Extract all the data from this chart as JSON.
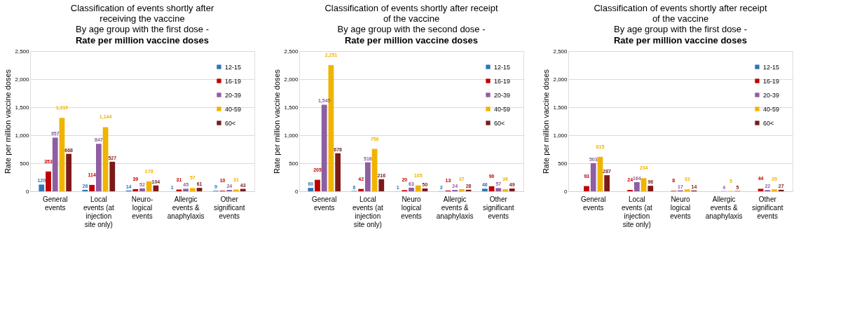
{
  "chart_data": [
    {
      "type": "bar",
      "title": "Classification of events shortly after\nreceiving the vaccine\nBy age group with the first dose -",
      "subtitle": "Rate per million vaccine doses",
      "ylabel": "Rate per million vaccine doses",
      "categories": [
        "General events",
        "Local events (at injection site only)",
        "Neuro- logical events",
        "Allergic events & anaphylaxis",
        "Other significant events"
      ],
      "series": [
        {
          "name": "12-15",
          "color": "#2e75b6",
          "values": [
            120,
            26,
            14,
            1,
            9
          ]
        },
        {
          "name": "16-19",
          "color": "#c00000",
          "values": [
            353,
            114,
            39,
            31,
            10
          ]
        },
        {
          "name": "20-39",
          "color": "#8e5ea2",
          "values": [
            957,
            847,
            52,
            45,
            24
          ]
        },
        {
          "name": "40-59",
          "color": "#f0b400",
          "values": [
            1310,
            1144,
            178,
            57,
            31
          ],
          "value_labels": [
            "1,310",
            "1,144",
            "178",
            "57",
            "31"
          ]
        },
        {
          "name": "60<",
          "color": "#7b1a1a",
          "values": [
            668,
            527,
            104,
            61,
            43
          ]
        }
      ],
      "ylim": [
        0,
        2500
      ],
      "yticks": [
        0,
        500,
        {
          "value": 1000,
          "label": "1,000"
        },
        {
          "value": 1500,
          "label": "1,500"
        },
        {
          "value": 2000,
          "label": "2,000"
        },
        {
          "value": 2500,
          "label": "2,500"
        }
      ],
      "grid": "y",
      "legend": "top right",
      "data_labels": true
    },
    {
      "type": "bar",
      "title": "Classification of events shortly after receipt\nof the vaccine\nBy age group with the second dose -",
      "subtitle": "Rate per million vaccine doses",
      "ylabel": "Rate per million vaccine doses",
      "categories": [
        "General events",
        "Local events (at injection site only)",
        "Neuro logical events",
        "Allergic events & anaphylaxis",
        "Other significant events"
      ],
      "series": [
        {
          "name": "12-15",
          "color": "#2e75b6",
          "values": [
            60,
            6,
            1,
            3,
            46
          ]
        },
        {
          "name": "16-19",
          "color": "#c00000",
          "values": [
            205,
            42,
            20,
            13,
            90
          ]
        },
        {
          "name": "20-39",
          "color": "#8e5ea2",
          "values": [
            1545,
            516,
            63,
            24,
            57
          ],
          "value_labels": [
            "1,545",
            "516",
            "63",
            "24",
            "57"
          ]
        },
        {
          "name": "40-59",
          "color": "#f0b400",
          "values": [
            2251,
            756,
            105,
            37,
            36
          ],
          "value_labels": [
            "2,251",
            "756",
            "105",
            "37",
            "36"
          ]
        },
        {
          "name": "60<",
          "color": "#7b1a1a",
          "values": [
            678,
            216,
            50,
            28,
            49
          ]
        }
      ],
      "ylim": [
        0,
        2500
      ],
      "yticks": [
        0,
        500,
        {
          "value": 1000,
          "label": "1,000"
        },
        {
          "value": 1500,
          "label": "1,500"
        },
        {
          "value": 2000,
          "label": "2,000"
        },
        {
          "value": 2500,
          "label": "2,500"
        }
      ],
      "grid": "y",
      "legend": "top right",
      "data_labels": true
    },
    {
      "type": "bar",
      "title": "Classification of events shortly after receipt\nof the vaccine\nBy age group with the first dose -",
      "subtitle": "Rate per million vaccine doses",
      "ylabel": "Rate per million vaccine doses",
      "categories": [
        "General events",
        "Local events (at injection site only)",
        "Neuro logical events",
        "Allergic events & anaphylaxis",
        "Other significant events"
      ],
      "series": [
        {
          "name": "12-15",
          "color": "#2e75b6",
          "values": [
            null,
            null,
            null,
            null,
            null
          ]
        },
        {
          "name": "16-19",
          "color": "#c00000",
          "values": [
            93,
            24,
            8,
            null,
            44
          ]
        },
        {
          "name": "20-39",
          "color": "#8e5ea2",
          "values": [
            503,
            164,
            17,
            4,
            22
          ]
        },
        {
          "name": "40-59",
          "color": "#f0b400",
          "values": [
            615,
            234,
            33,
            5,
            35
          ]
        },
        {
          "name": "60<",
          "color": "#7b1a1a",
          "values": [
            287,
            98,
            14,
            5,
            27
          ]
        }
      ],
      "ylim": [
        0,
        2500
      ],
      "yticks": [
        0,
        500,
        {
          "value": 1000,
          "label": "1,000"
        },
        {
          "value": 1500,
          "label": "1,500"
        },
        {
          "value": 2000,
          "label": "2,000"
        },
        {
          "value": 2500,
          "label": "2,500"
        }
      ],
      "grid": "y",
      "legend": "top right",
      "data_labels": true
    }
  ]
}
